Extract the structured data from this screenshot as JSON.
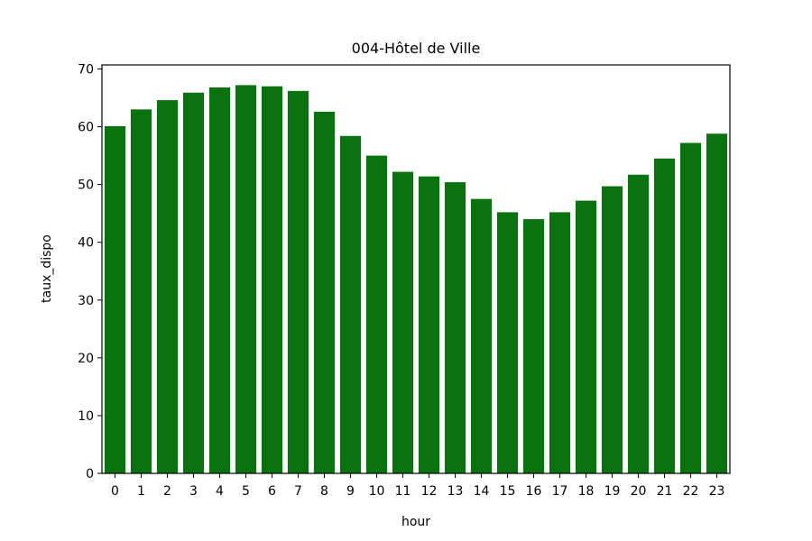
{
  "chart_data": {
    "type": "bar",
    "title": "004-Hôtel de Ville",
    "xlabel": "hour",
    "ylabel": "taux_dispo",
    "categories": [
      "0",
      "1",
      "2",
      "3",
      "4",
      "5",
      "6",
      "7",
      "8",
      "9",
      "10",
      "11",
      "12",
      "13",
      "14",
      "15",
      "16",
      "17",
      "18",
      "19",
      "20",
      "21",
      "22",
      "23"
    ],
    "values": [
      60.1,
      63.0,
      64.6,
      65.9,
      66.8,
      67.2,
      67.0,
      66.2,
      62.6,
      58.4,
      55.0,
      52.2,
      51.4,
      50.4,
      47.5,
      45.2,
      44.0,
      45.2,
      47.2,
      49.7,
      51.7,
      54.5,
      57.2,
      58.8
    ],
    "ylim": [
      0,
      70.7
    ],
    "yticks": [
      0,
      10,
      20,
      30,
      40,
      50,
      60,
      70
    ],
    "bar_color": "#0a7310",
    "grid": false,
    "legend": false
  }
}
